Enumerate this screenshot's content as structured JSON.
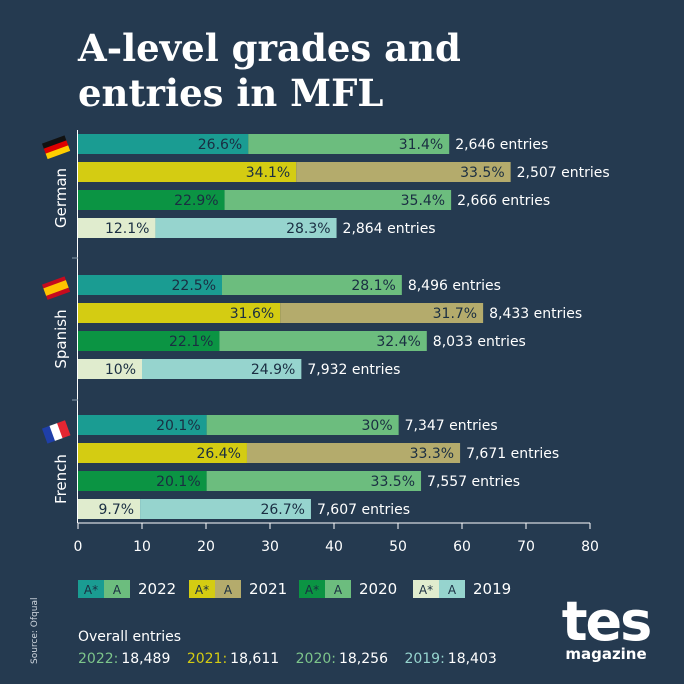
{
  "title_line1": "A-level grades and",
  "title_line2": "entries in MFL",
  "source": "Source: Ofqual",
  "entries_suffix": "entries",
  "chart_data": {
    "type": "bar",
    "orientation": "horizontal",
    "stacked": true,
    "xlim": [
      0,
      80
    ],
    "xticks": [
      0,
      10,
      20,
      30,
      40,
      50,
      60,
      70,
      80
    ],
    "groups": [
      {
        "name": "German",
        "rows": [
          {
            "year": "2022",
            "astar": 26.6,
            "a": 31.4,
            "entries": "2,646"
          },
          {
            "year": "2021",
            "astar": 34.1,
            "a": 33.5,
            "entries": "2,507"
          },
          {
            "year": "2020",
            "astar": 22.9,
            "a": 35.4,
            "entries": "2,666"
          },
          {
            "year": "2019",
            "astar": 12.1,
            "a": 28.3,
            "entries": "2,864"
          }
        ]
      },
      {
        "name": "Spanish",
        "rows": [
          {
            "year": "2022",
            "astar": 22.5,
            "a": 28.1,
            "entries": "8,496"
          },
          {
            "year": "2021",
            "astar": 31.6,
            "a": 31.7,
            "entries": "8,433"
          },
          {
            "year": "2020",
            "astar": 22.1,
            "a": 32.4,
            "entries": "8,033"
          },
          {
            "year": "2019",
            "astar": 10,
            "a": 24.9,
            "entries": "7,932"
          }
        ]
      },
      {
        "name": "French",
        "rows": [
          {
            "year": "2022",
            "astar": 20.1,
            "a": 30,
            "entries": "7,347"
          },
          {
            "year": "2021",
            "astar": 26.4,
            "a": 33.3,
            "entries": "7,671"
          },
          {
            "year": "2020",
            "astar": 20.1,
            "a": 33.5,
            "entries": "7,557"
          },
          {
            "year": "2019",
            "astar": 9.7,
            "a": 26.7,
            "entries": "7,607"
          }
        ]
      }
    ],
    "legend": [
      {
        "year": "2022",
        "astar_label": "A*",
        "a_label": "A",
        "astar_color": "#1a9c92",
        "a_color": "#6cbd7e",
        "astar_text": "#1a2e42",
        "a_text": "#1a2e42"
      },
      {
        "year": "2021",
        "astar_label": "A*",
        "a_label": "A",
        "astar_color": "#d4cc12",
        "a_color": "#b4ab6c",
        "astar_text": "#1a2e42",
        "a_text": "#1a2e42"
      },
      {
        "year": "2020",
        "astar_label": "A*",
        "a_label": "A",
        "astar_color": "#0b9443",
        "a_color": "#6cbd7e",
        "astar_text": "#1a2e42",
        "a_text": "#1a2e42"
      },
      {
        "year": "2019",
        "astar_label": "A*",
        "a_label": "A",
        "astar_color": "#e0ecce",
        "a_color": "#96d4ce",
        "astar_text": "#1a2e42",
        "a_text": "#1a2e42"
      }
    ],
    "legend_placement": "bottom",
    "grid": false
  },
  "overall": {
    "title": "Overall entries",
    "items": [
      {
        "label": "2022:",
        "value": "18,489",
        "color": "#7dc58b"
      },
      {
        "label": "2021:",
        "value": "18,611",
        "color": "#d4cc12"
      },
      {
        "label": "2020:",
        "value": "18,256",
        "color": "#7dc58b"
      },
      {
        "label": "2019:",
        "value": "18,403",
        "color": "#96d4ce"
      }
    ]
  },
  "logo": {
    "top": "tes",
    "bottom": "magazine"
  },
  "colors": {
    "background": "#253a50",
    "text": "#ffffff"
  }
}
